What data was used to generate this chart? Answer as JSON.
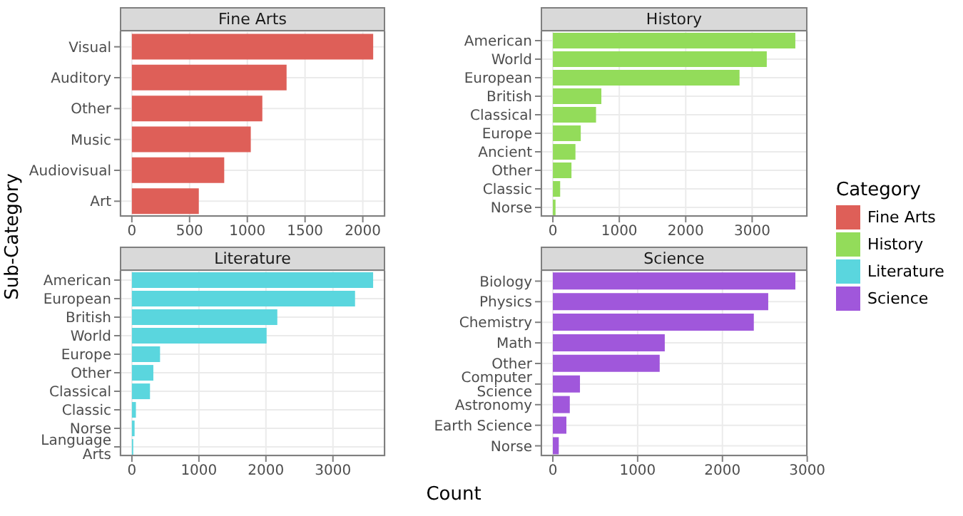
{
  "chart_data": [
    {
      "type": "bar",
      "orientation": "horizontal",
      "title": "Fine Arts",
      "ylabel": "Sub-Category",
      "legend": "right",
      "legend_title": "Category",
      "grid": true,
      "categories": [
        "Visual",
        "Auditory",
        "Other",
        "Music",
        "Audiovisual",
        "Art"
      ],
      "series": [
        {
          "name": "Fine Arts",
          "color": "#de5f58",
          "values": [
            2090,
            1340,
            1130,
            1030,
            800,
            580
          ]
        }
      ],
      "xlim": [
        -104,
        2194
      ],
      "xticks": [
        0,
        500,
        1000,
        1500,
        2000
      ]
    },
    {
      "type": "bar",
      "orientation": "horizontal",
      "title": "History",
      "legend": "right",
      "grid": true,
      "categories": [
        "American",
        "World",
        "European",
        "British",
        "Classical",
        "Europe",
        "Ancient",
        "Other",
        "Classic",
        "Norse"
      ],
      "series": [
        {
          "name": "History",
          "color": "#93dc5a",
          "values": [
            3650,
            3220,
            2810,
            730,
            650,
            420,
            340,
            280,
            110,
            40
          ]
        }
      ],
      "xlim": [
        -183,
        3833
      ],
      "xticks": [
        0,
        1000,
        2000,
        3000
      ]
    },
    {
      "type": "bar",
      "orientation": "horizontal",
      "title": "Literature",
      "xlabel": "Count",
      "legend": "right",
      "grid": true,
      "categories": [
        "American",
        "European",
        "British",
        "World",
        "Europe",
        "Other",
        "Classical",
        "Classic",
        "Norse",
        "Language Arts"
      ],
      "series": [
        {
          "name": "Literature",
          "color": "#5ad6de",
          "values": [
            3600,
            3330,
            2170,
            2010,
            420,
            320,
            270,
            60,
            40,
            20
          ]
        }
      ],
      "xlim": [
        -180,
        3780
      ],
      "xticks": [
        0,
        1000,
        2000,
        3000
      ]
    },
    {
      "type": "bar",
      "orientation": "horizontal",
      "title": "Science",
      "legend": "right",
      "grid": true,
      "categories": [
        "Biology",
        "Physics",
        "Chemistry",
        "Math",
        "Other",
        "Computer Science",
        "Astronomy",
        "Earth Science",
        "Norse"
      ],
      "series": [
        {
          "name": "Science",
          "color": "#a057db",
          "values": [
            2860,
            2540,
            2370,
            1320,
            1260,
            320,
            200,
            160,
            70
          ]
        }
      ],
      "xlim": [
        -143,
        3003
      ],
      "xticks": [
        0,
        1000,
        2000,
        3000
      ]
    }
  ]
}
